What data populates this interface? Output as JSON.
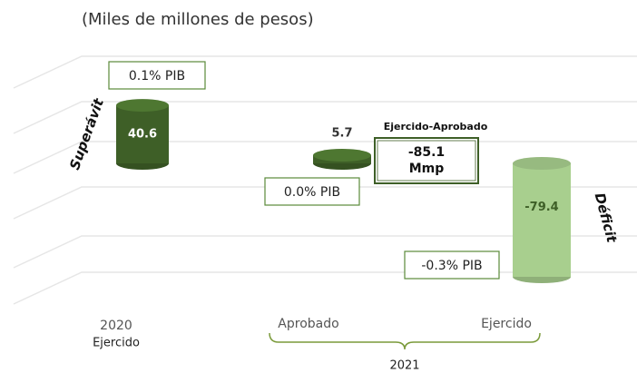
{
  "chart_data": {
    "type": "bar",
    "subtitle": "(Miles de millones de pesos)",
    "categories": [
      "2020",
      "Aprobado",
      "Ejercido"
    ],
    "category_note": "Ejercido",
    "group_label": "2021",
    "values": [
      40.6,
      5.7,
      -79.4
    ],
    "colors": [
      "#3e5f27",
      "#3e5f27",
      "#a8cf8e"
    ],
    "pib_labels": [
      "0.1% PIB",
      "0.0% PIB",
      "-0.3% PIB"
    ],
    "surplus_label": "Superávit",
    "deficit_label": "Déficit",
    "difference_title": "Ejercido-Aprobado",
    "difference_value": -85.1,
    "difference_unit": "Mmp",
    "grid": true
  }
}
